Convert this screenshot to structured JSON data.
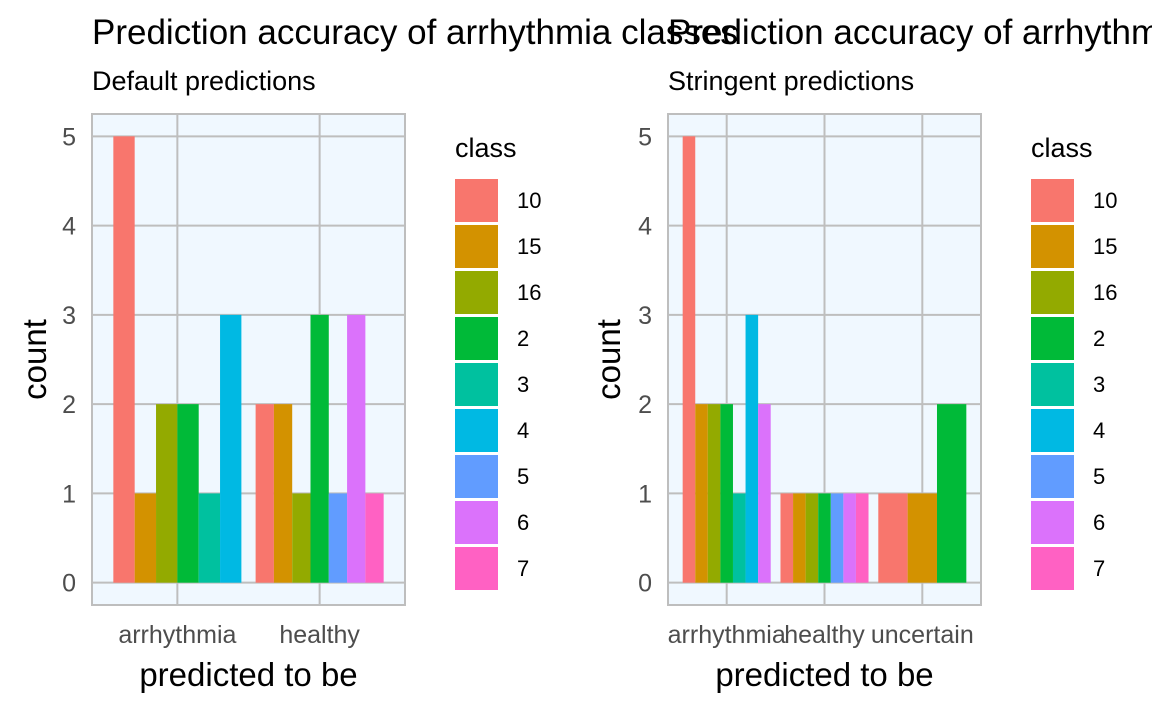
{
  "chart_data": [
    {
      "type": "bar",
      "title": "Prediction accuracy of arrhythmia classes",
      "subtitle": "Default predictions",
      "xlabel": "predicted to be",
      "ylabel": "count",
      "categories": [
        "arrhythmia",
        "healthy"
      ],
      "ylim": [
        0,
        5
      ],
      "y_ticks": [
        0,
        1,
        2,
        3,
        4,
        5
      ],
      "grid": true,
      "legend_position": "right",
      "legend_title": "class",
      "series": [
        {
          "name": "10",
          "color": "#F8766D",
          "values": [
            5,
            2
          ]
        },
        {
          "name": "15",
          "color": "#D39200",
          "values": [
            1,
            2
          ]
        },
        {
          "name": "16",
          "color": "#93AA00",
          "values": [
            2,
            1
          ]
        },
        {
          "name": "2",
          "color": "#00BA38",
          "values": [
            2,
            3
          ]
        },
        {
          "name": "3",
          "color": "#00C19F",
          "values": [
            1,
            null
          ]
        },
        {
          "name": "4",
          "color": "#00B9E3",
          "values": [
            3,
            null
          ]
        },
        {
          "name": "5",
          "color": "#619CFF",
          "values": [
            null,
            1
          ]
        },
        {
          "name": "6",
          "color": "#DB72FB",
          "values": [
            null,
            3
          ]
        },
        {
          "name": "7",
          "color": "#FF61C3",
          "values": [
            null,
            1
          ]
        }
      ]
    },
    {
      "type": "bar",
      "title": "Prediction accuracy of arrhythmia classes",
      "subtitle": "Stringent predictions",
      "xlabel": "predicted to be",
      "ylabel": "count",
      "categories": [
        "arrhythmia",
        "healthy",
        "uncertain"
      ],
      "ylim": [
        0,
        5
      ],
      "y_ticks": [
        0,
        1,
        2,
        3,
        4,
        5
      ],
      "grid": true,
      "legend_position": "right",
      "legend_title": "class",
      "series": [
        {
          "name": "10",
          "color": "#F8766D",
          "values": [
            5,
            1,
            1
          ]
        },
        {
          "name": "15",
          "color": "#D39200",
          "values": [
            2,
            1,
            1
          ]
        },
        {
          "name": "16",
          "color": "#93AA00",
          "values": [
            2,
            1,
            null
          ]
        },
        {
          "name": "2",
          "color": "#00BA38",
          "values": [
            2,
            1,
            2
          ]
        },
        {
          "name": "3",
          "color": "#00C19F",
          "values": [
            1,
            null,
            null
          ]
        },
        {
          "name": "4",
          "color": "#00B9E3",
          "values": [
            3,
            null,
            null
          ]
        },
        {
          "name": "5",
          "color": "#619CFF",
          "values": [
            null,
            1,
            null
          ]
        },
        {
          "name": "6",
          "color": "#DB72FB",
          "values": [
            2,
            1,
            null
          ]
        },
        {
          "name": "7",
          "color": "#FF61C3",
          "values": [
            null,
            1,
            null
          ]
        }
      ]
    }
  ]
}
